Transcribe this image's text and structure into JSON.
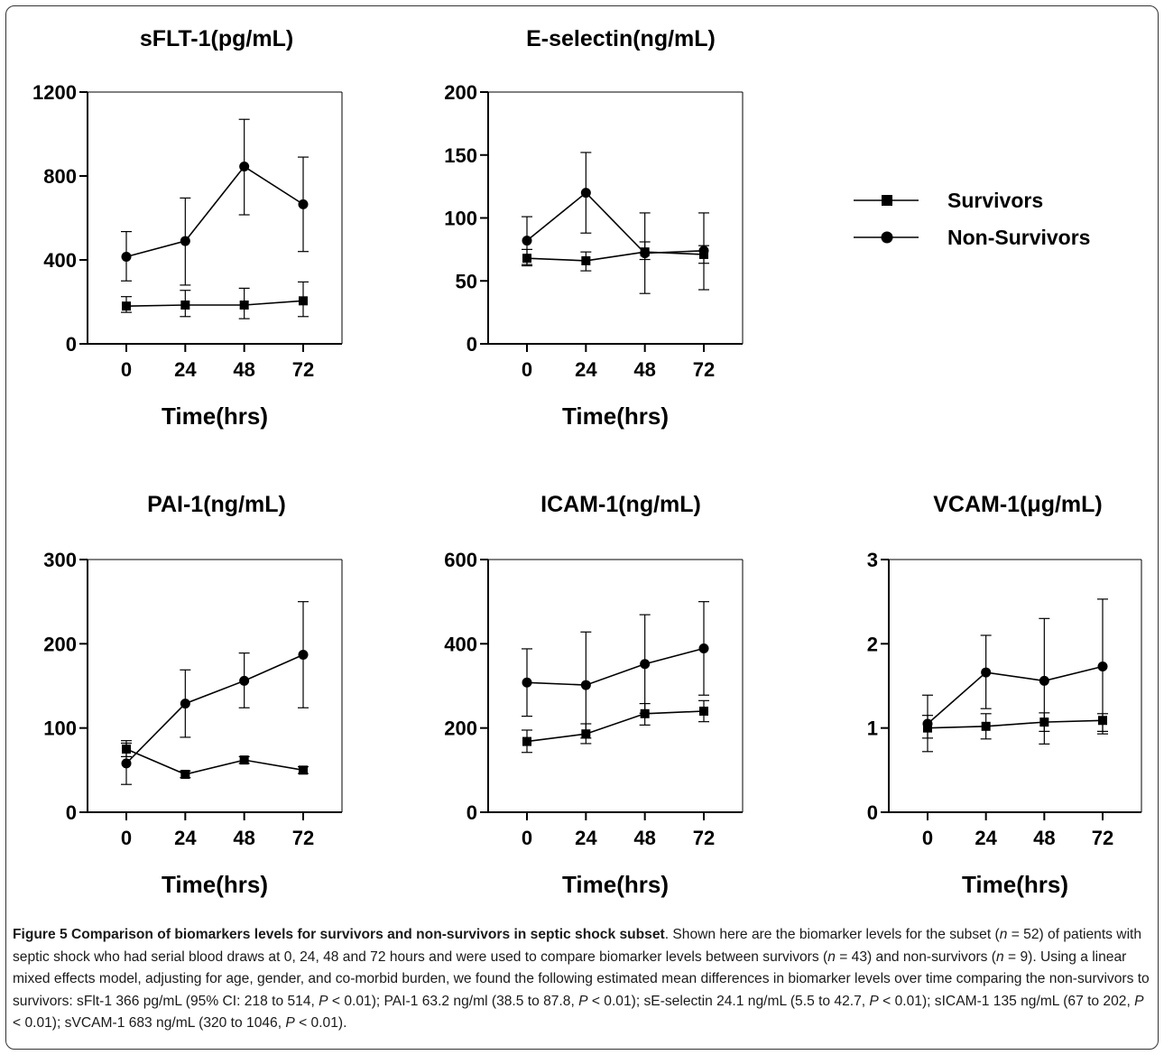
{
  "chart_data": [
    {
      "type": "line",
      "title": "sFLT-1(pg/mL)",
      "xlabel": "Time(hrs)",
      "x": [
        0,
        24,
        48,
        72
      ],
      "ylim": [
        0,
        1200
      ],
      "yticks": [
        0,
        400,
        800,
        1200
      ],
      "series": [
        {
          "name": "Survivors",
          "marker": "square",
          "values": [
            180,
            185,
            185,
            205
          ],
          "err_hi": [
            225,
            255,
            265,
            295
          ],
          "err_lo": [
            150,
            130,
            120,
            130
          ]
        },
        {
          "name": "Non-Survivors",
          "marker": "circle",
          "values": [
            415,
            490,
            845,
            665
          ],
          "err_hi": [
            535,
            695,
            1070,
            890
          ],
          "err_lo": [
            300,
            280,
            615,
            440
          ]
        }
      ]
    },
    {
      "type": "line",
      "title": "E-selectin(ng/mL)",
      "xlabel": "Time(hrs)",
      "x": [
        0,
        24,
        48,
        72
      ],
      "ylim": [
        0,
        200
      ],
      "yticks": [
        0,
        50,
        100,
        150,
        200
      ],
      "series": [
        {
          "name": "Survivors",
          "marker": "square",
          "values": [
            68,
            66,
            73,
            71
          ],
          "err_hi": [
            75,
            73,
            81,
            78
          ],
          "err_lo": [
            62,
            58,
            67,
            64
          ]
        },
        {
          "name": "Non-Survivors",
          "marker": "circle",
          "values": [
            82,
            120,
            72,
            74
          ],
          "err_hi": [
            101,
            152,
            104,
            104
          ],
          "err_lo": [
            63,
            88,
            40,
            43
          ]
        }
      ]
    },
    {
      "type": "line",
      "title": "PAI-1(ng/mL)",
      "xlabel": "Time(hrs)",
      "x": [
        0,
        24,
        48,
        72
      ],
      "ylim": [
        0,
        300
      ],
      "yticks": [
        0,
        100,
        200,
        300
      ],
      "series": [
        {
          "name": "Survivors",
          "marker": "square",
          "values": [
            75,
            45,
            62,
            50
          ],
          "err_hi": [
            85,
            49,
            66,
            54
          ],
          "err_lo": [
            66,
            41,
            58,
            46
          ]
        },
        {
          "name": "Non-Survivors",
          "marker": "circle",
          "values": [
            58,
            129,
            156,
            187
          ],
          "err_hi": [
            82,
            169,
            189,
            250
          ],
          "err_lo": [
            33,
            89,
            124,
            124
          ]
        }
      ]
    },
    {
      "type": "line",
      "title": "ICAM-1(ng/mL)",
      "xlabel": "Time(hrs)",
      "x": [
        0,
        24,
        48,
        72
      ],
      "ylim": [
        0,
        600
      ],
      "yticks": [
        0,
        200,
        400,
        600
      ],
      "series": [
        {
          "name": "Survivors",
          "marker": "square",
          "values": [
            168,
            186,
            234,
            240
          ],
          "err_hi": [
            195,
            210,
            258,
            265
          ],
          "err_lo": [
            142,
            163,
            207,
            215
          ]
        },
        {
          "name": "Non-Survivors",
          "marker": "circle",
          "values": [
            308,
            302,
            352,
            389
          ],
          "err_hi": [
            388,
            428,
            469,
            500
          ],
          "err_lo": [
            228,
            176,
            235,
            278
          ]
        }
      ]
    },
    {
      "type": "line",
      "title": "VCAM-1(μg/mL)",
      "xlabel": "Time(hrs)",
      "x": [
        0,
        24,
        48,
        72
      ],
      "ylim": [
        0,
        3
      ],
      "yticks": [
        0,
        1,
        2,
        3
      ],
      "series": [
        {
          "name": "Survivors",
          "marker": "square",
          "values": [
            1.0,
            1.02,
            1.07,
            1.09
          ],
          "err_hi": [
            1.15,
            1.17,
            1.18,
            1.17
          ],
          "err_lo": [
            0.88,
            0.87,
            0.96,
            0.96
          ]
        },
        {
          "name": "Non-Survivors",
          "marker": "circle",
          "values": [
            1.05,
            1.66,
            1.56,
            1.73
          ],
          "err_hi": [
            1.39,
            2.1,
            2.3,
            2.53
          ],
          "err_lo": [
            0.72,
            1.23,
            0.81,
            0.93
          ]
        }
      ]
    }
  ],
  "legend": {
    "items": [
      {
        "label": "Survivors",
        "marker": "square"
      },
      {
        "label": "Non-Survivors",
        "marker": "circle"
      }
    ]
  },
  "caption": {
    "title": "Figure 5 Comparison of biomarkers levels for survivors and non-survivors in septic shock subset",
    "text_1": ". Shown here are the biomarker levels for the subset (",
    "n_symbol": "n",
    "n_total": " = 52) of patients with septic shock who had serial blood draws at 0, 24, 48 and 72 hours and were used to compare biomarker levels between survivors (",
    "n_surv": " = 43) and non-survivors (",
    "n_nonsurv": " = 9). Using a linear mixed effects model, adjusting for age, gender, and co-morbid burden, we found the following estimated mean differences in biomarker levels over time comparing the non-survivors to survivors: sFlt-1 366 pg/mL (95% CI: 218 to 514, ",
    "p_symbol": "P",
    "p1": " < 0.01); PAI-1 63.2 ng/ml (38.5 to 87.8, ",
    "p2": " < 0.01); sE-selectin 24.1 ng/mL (5.5 to 42.7, ",
    "p3": " < 0.01); sICAM-1 135 ng/mL (67 to 202, ",
    "p4": " < 0.01); sVCAM-1 683 ng/mL (320 to 1046, ",
    "p5": " < 0.01)."
  }
}
